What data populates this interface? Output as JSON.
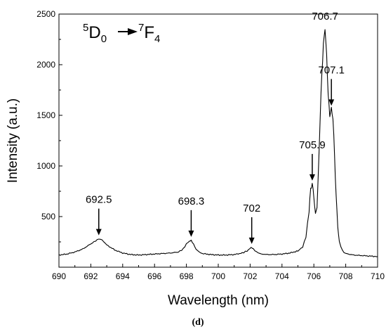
{
  "chart_data": {
    "type": "line",
    "xlabel": "Wavelength (nm)",
    "ylabel": "Intensity (a.u.)",
    "xlim": [
      690,
      710
    ],
    "ylim": [
      0,
      2500
    ],
    "x_ticks": [
      "690",
      "692",
      "694",
      "696",
      "698",
      "700",
      "702",
      "704",
      "706",
      "708",
      "710"
    ],
    "y_ticks": [
      "500",
      "1000",
      "1500",
      "2000",
      "2500"
    ],
    "transition": {
      "pre1": "5",
      "sym1": "D",
      "sub1": "0",
      "pre2": "7",
      "sym2": "F",
      "sub2": "4"
    },
    "panel_label": "(d)",
    "annotations": [
      {
        "label": "692.5",
        "x": 692.5,
        "arrow": true
      },
      {
        "label": "698.3",
        "x": 698.3,
        "arrow": true
      },
      {
        "label": "702",
        "x": 702.1,
        "arrow": true
      },
      {
        "label": "705.9",
        "x": 705.9,
        "arrow": true
      },
      {
        "label": "707.1",
        "x": 707.1,
        "arrow": true
      },
      {
        "label": "706.7",
        "x": 706.7,
        "arrow": false
      }
    ],
    "series": [
      {
        "color": "#000000",
        "x": [
          690.0,
          690.5,
          691.0,
          691.5,
          692.0,
          692.3,
          692.5,
          692.7,
          693.0,
          693.5,
          694.0,
          694.5,
          695.0,
          695.5,
          696.0,
          696.5,
          697.0,
          697.5,
          697.8,
          698.0,
          698.2,
          698.3,
          698.45,
          698.6,
          698.8,
          699.0,
          699.5,
          700.0,
          700.5,
          701.0,
          701.5,
          701.8,
          702.0,
          702.1,
          702.2,
          702.4,
          702.7,
          703.0,
          703.5,
          704.0,
          704.5,
          705.0,
          705.3,
          705.5,
          705.7,
          705.8,
          705.9,
          706.0,
          706.1,
          706.2,
          706.3,
          706.4,
          706.5,
          706.6,
          706.7,
          706.8,
          706.9,
          707.0,
          707.1,
          707.2,
          707.3,
          707.4,
          707.5,
          707.6,
          707.8,
          708.0,
          708.5,
          709.0,
          709.5,
          710.0
        ],
        "y": [
          120,
          130,
          150,
          180,
          230,
          260,
          280,
          270,
          220,
          170,
          140,
          125,
          120,
          125,
          130,
          135,
          140,
          150,
          180,
          230,
          260,
          265,
          230,
          180,
          150,
          135,
          125,
          120,
          120,
          125,
          140,
          160,
          185,
          195,
          180,
          150,
          130,
          125,
          125,
          130,
          140,
          160,
          200,
          300,
          550,
          780,
          820,
          700,
          520,
          600,
          1000,
          1500,
          1900,
          2200,
          2360,
          2100,
          1700,
          1500,
          1560,
          1480,
          1100,
          700,
          400,
          250,
          160,
          135,
          120,
          115,
          110,
          105
        ]
      }
    ]
  }
}
